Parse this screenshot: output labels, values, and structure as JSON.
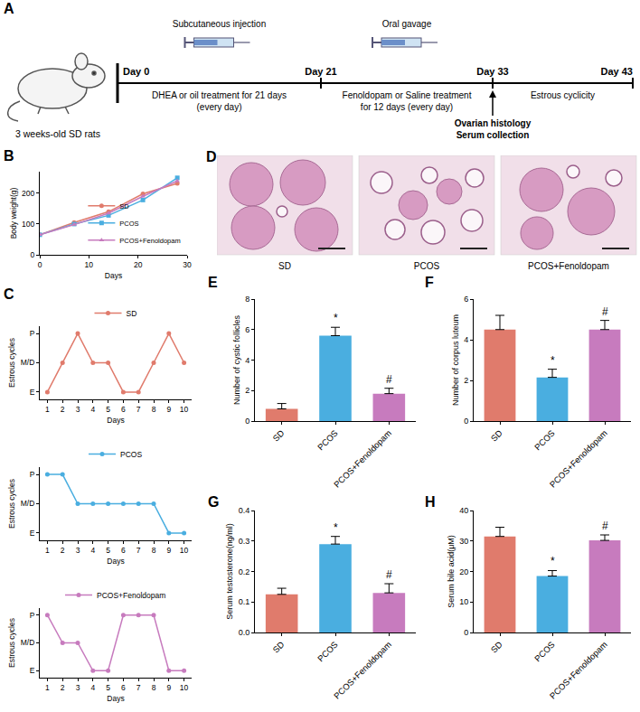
{
  "diagram": {
    "panel": "A",
    "subject": "3 weeks-old SD rats",
    "days": [
      "Day 0",
      "Day 21",
      "Day 33",
      "Day 43"
    ],
    "above": [
      "Subcutaneous injection",
      "Oral gavage"
    ],
    "below": [
      [
        "DHEA or oil treatment for 21 days",
        "(every day)"
      ],
      [
        "Fenoldopam or Saline treatment",
        "for 12 days (every day)"
      ],
      [
        "Estrous cyclicity"
      ]
    ],
    "endpoint": [
      "Ovarian histology",
      "Serum collection"
    ]
  },
  "images": {
    "panel": "D",
    "labels": [
      "SD",
      "PCOS",
      "PCOS+Fenoldopam"
    ]
  },
  "chart_data": [
    {
      "panel": "B",
      "type": "line",
      "x": [
        0,
        7,
        14,
        21,
        28
      ],
      "xlabel": "Days",
      "ylabel": "Body weight(g)",
      "xlim": [
        0,
        30
      ],
      "xticks": [
        0,
        10,
        20,
        30
      ],
      "ylim": [
        0,
        270
      ],
      "yticks": [
        0,
        100,
        200
      ],
      "legend": "lower right",
      "series": [
        {
          "name": "SD",
          "color": "#E07B6C",
          "marker": "circle",
          "values": [
            65,
            105,
            140,
            198,
            232
          ]
        },
        {
          "name": "PCOS",
          "color": "#4AAEE0",
          "marker": "square",
          "values": [
            65,
            100,
            128,
            178,
            250
          ]
        },
        {
          "name": "PCOS+Fenoldopam",
          "color": "#C77BBE",
          "marker": "triangle-up",
          "values": [
            65,
            98,
            135,
            190,
            240
          ]
        }
      ]
    },
    {
      "panel": "C",
      "type": "line",
      "x": [
        1,
        2,
        3,
        4,
        5,
        6,
        7,
        8,
        9,
        10
      ],
      "xlabel": "Days",
      "ylabel": "Estrous cycles",
      "xlim": [
        0.5,
        10.5
      ],
      "xticks": [
        1,
        2,
        3,
        4,
        5,
        6,
        7,
        8,
        9,
        10
      ],
      "ylim": [
        -0.25,
        2.25
      ],
      "yticks": [
        {
          "value": 0,
          "label": "E"
        },
        {
          "value": 1,
          "label": "M/D"
        },
        {
          "value": 2,
          "label": "P"
        }
      ],
      "legend": "top",
      "series": [
        {
          "name": "SD",
          "color": "#E07B6C",
          "marker": "circle",
          "values": [
            0,
            1,
            2,
            1,
            1,
            0,
            0,
            1,
            2,
            1
          ]
        }
      ]
    },
    {
      "type": "line",
      "x": [
        1,
        2,
        3,
        4,
        5,
        6,
        7,
        8,
        9,
        10
      ],
      "xlabel": "Days",
      "ylabel": "Estrous cycles",
      "xlim": [
        0.5,
        10.5
      ],
      "xticks": [
        1,
        2,
        3,
        4,
        5,
        6,
        7,
        8,
        9,
        10
      ],
      "ylim": [
        -0.25,
        2.25
      ],
      "yticks": [
        {
          "value": 0,
          "label": "E"
        },
        {
          "value": 1,
          "label": "M/D"
        },
        {
          "value": 2,
          "label": "P"
        }
      ],
      "legend": "top",
      "series": [
        {
          "name": "PCOS",
          "color": "#4AAEE0",
          "marker": "circle",
          "values": [
            2,
            2,
            1,
            1,
            1,
            1,
            1,
            1,
            0,
            0
          ]
        }
      ]
    },
    {
      "type": "line",
      "x": [
        1,
        2,
        3,
        4,
        5,
        6,
        7,
        8,
        9,
        10
      ],
      "xlabel": "Days",
      "ylabel": "Estrous cycles",
      "xlim": [
        0.5,
        10.5
      ],
      "xticks": [
        1,
        2,
        3,
        4,
        5,
        6,
        7,
        8,
        9,
        10
      ],
      "ylim": [
        -0.25,
        2.25
      ],
      "yticks": [
        {
          "value": 0,
          "label": "E"
        },
        {
          "value": 1,
          "label": "M/D"
        },
        {
          "value": 2,
          "label": "P"
        }
      ],
      "legend": "top",
      "series": [
        {
          "name": "PCOS+Fenoldopam",
          "color": "#C77BBE",
          "marker": "circle",
          "values": [
            2,
            1,
            1,
            0,
            0,
            2,
            2,
            2,
            0,
            0
          ]
        }
      ]
    },
    {
      "panel": "E",
      "type": "bar",
      "categories": [
        "SD",
        "PCOS",
        "PCOS+Fenoldopam"
      ],
      "values": [
        0.8,
        5.6,
        1.8
      ],
      "errors": [
        0.35,
        0.55,
        0.35
      ],
      "colors": [
        "#E07B6C",
        "#4AAEE0",
        "#C77BBE"
      ],
      "ylabel": "Number of cystic follicles",
      "ylim": [
        0,
        8
      ],
      "yticks": [
        0,
        2,
        4,
        6,
        8
      ],
      "annotations": [
        {
          "category": "PCOS",
          "text": "*"
        },
        {
          "category": "PCOS+Fenoldopam",
          "text": "#"
        }
      ]
    },
    {
      "panel": "F",
      "type": "bar",
      "categories": [
        "SD",
        "PCOS",
        "PCOS+Fenoldopam"
      ],
      "values": [
        4.5,
        2.15,
        4.5
      ],
      "errors": [
        0.7,
        0.4,
        0.45
      ],
      "colors": [
        "#E07B6C",
        "#4AAEE0",
        "#C77BBE"
      ],
      "ylabel": "Number of corpus luteum",
      "ylim": [
        0,
        6
      ],
      "yticks": [
        0,
        2,
        4,
        6
      ],
      "annotations": [
        {
          "category": "PCOS",
          "text": "*"
        },
        {
          "category": "PCOS+Fenoldopam",
          "text": "#"
        }
      ]
    },
    {
      "panel": "G",
      "type": "bar",
      "categories": [
        "SD",
        "PCOS",
        "PCOS+Fenoldopam"
      ],
      "values": [
        0.125,
        0.29,
        0.13
      ],
      "errors": [
        0.02,
        0.025,
        0.03
      ],
      "colors": [
        "#E07B6C",
        "#4AAEE0",
        "#C77BBE"
      ],
      "ylabel": "Serum testosterone(ng/ml)",
      "ylim": [
        0,
        0.4
      ],
      "yticks": [
        {
          "value": 0,
          "label": "0.0"
        },
        0.1,
        0.2,
        0.3,
        0.4
      ],
      "annotations": [
        {
          "category": "PCOS",
          "text": "*"
        },
        {
          "category": "PCOS+Fenoldopam",
          "text": "#"
        }
      ]
    },
    {
      "panel": "H",
      "type": "bar",
      "categories": [
        "SD",
        "PCOS",
        "PCOS+Fenoldopam"
      ],
      "values": [
        31.5,
        18.5,
        30.2
      ],
      "errors": [
        3,
        1.8,
        1.8
      ],
      "colors": [
        "#E07B6C",
        "#4AAEE0",
        "#C77BBE"
      ],
      "ylabel": "Serum bile acid(μM)",
      "ylim": [
        0,
        40
      ],
      "yticks": [
        0,
        10,
        20,
        30,
        40
      ],
      "annotations": [
        {
          "category": "PCOS",
          "text": "*"
        },
        {
          "category": "PCOS+Fenoldopam",
          "text": "#"
        }
      ]
    }
  ]
}
